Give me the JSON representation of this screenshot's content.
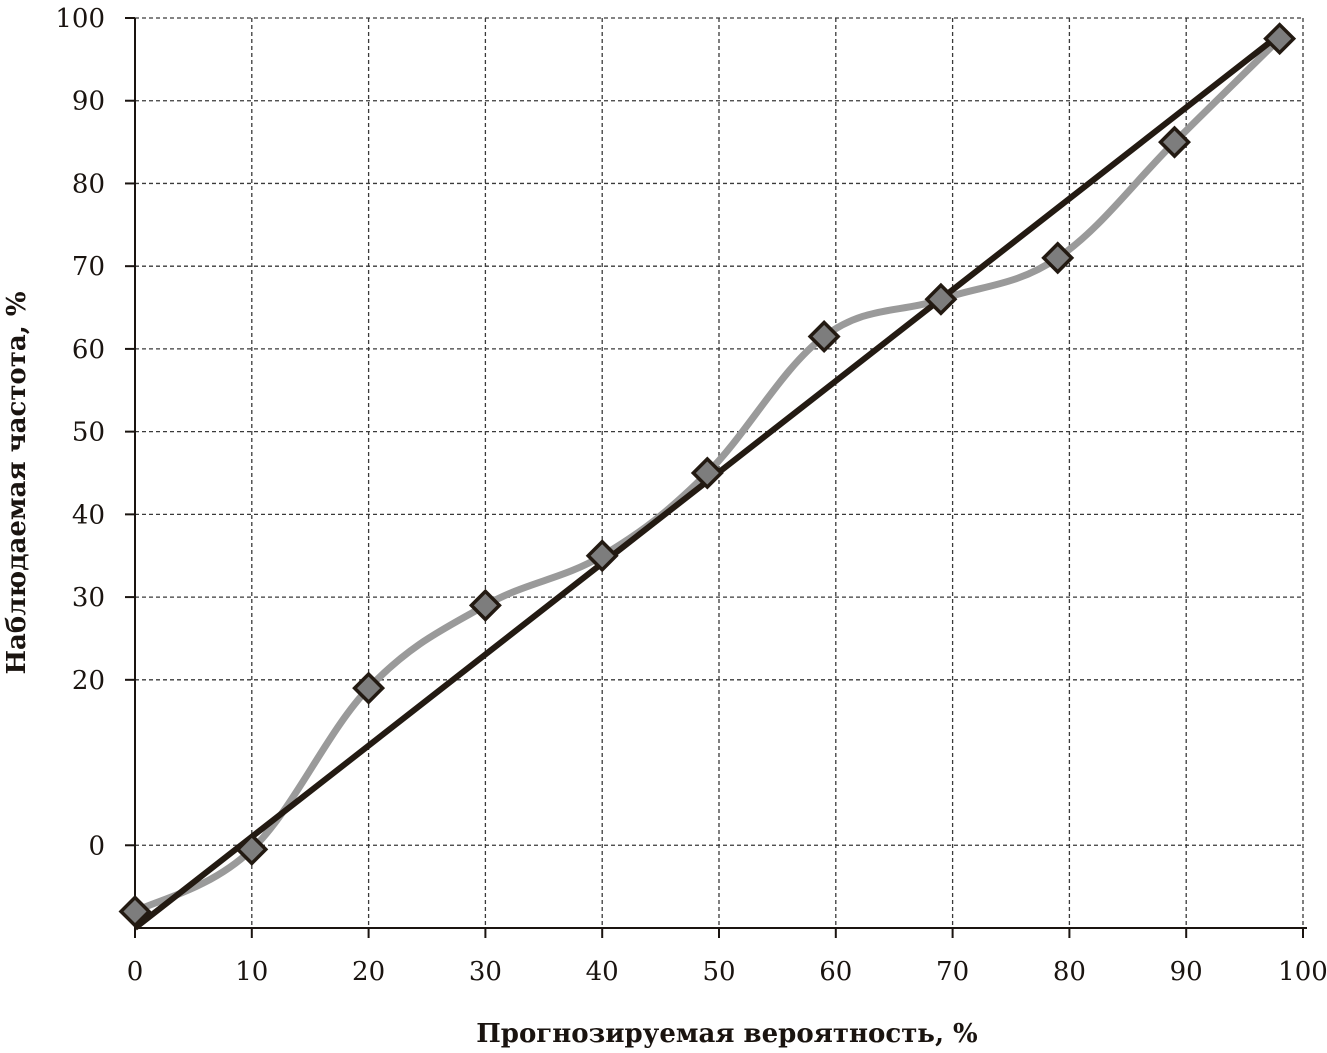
{
  "chart_data": {
    "type": "line",
    "xlabel": "Прогнозируемая вероятность, %",
    "ylabel": "Наблюдаемая частота, %",
    "xlim": [
      0,
      100
    ],
    "ylim": [
      -10,
      100
    ],
    "x_ticks": [
      "0",
      "10",
      "20",
      "30",
      "40",
      "50",
      "60",
      "70",
      "80",
      "90",
      "100"
    ],
    "y_ticks": [
      "0",
      "20",
      "30",
      "40",
      "50",
      "60",
      "70",
      "80",
      "90",
      "100"
    ],
    "y_tick_values": [
      0,
      20,
      30,
      40,
      50,
      60,
      70,
      80,
      90,
      100
    ],
    "grid": true,
    "series": [
      {
        "color": "#231a12",
        "marker": "none",
        "x": [
          0,
          98
        ],
        "y": [
          -10,
          98
        ]
      },
      {
        "color": "#9a9a9a",
        "marker": "diamond",
        "marker_color": "#7d7d7d",
        "smooth": true,
        "x": [
          0,
          10,
          20,
          30,
          40,
          49,
          59,
          69,
          79,
          89,
          98
        ],
        "y": [
          -8,
          -0.5,
          19,
          29,
          35,
          45,
          61.5,
          66,
          71,
          85,
          97.5
        ]
      }
    ]
  }
}
